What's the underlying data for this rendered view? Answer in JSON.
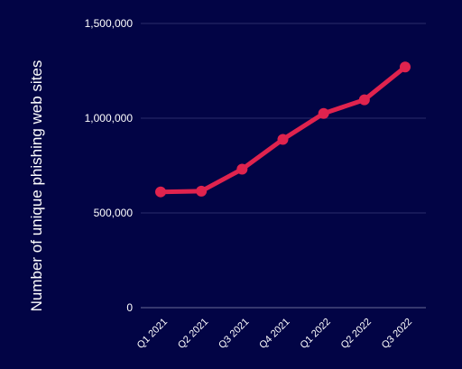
{
  "chart_data": {
    "type": "line",
    "title": "",
    "xlabel": "",
    "ylabel": "Number of unique phishing web sites",
    "categories": [
      "Q1 2021",
      "Q2 2021",
      "Q3 2021",
      "Q4 2021",
      "Q1 2022",
      "Q2 2022",
      "Q3 2022"
    ],
    "series": [
      {
        "values": [
          611000,
          615000,
          731000,
          888000,
          1025000,
          1097000,
          1270000
        ]
      }
    ],
    "ylim": [
      0,
      1500000
    ],
    "yticks": [
      0,
      500000,
      1000000,
      1500000
    ],
    "ytick_labels": [
      "0",
      "500,000",
      "1,000,000",
      "1,500,000"
    ],
    "grid": true,
    "legend": "none",
    "colors": {
      "background": "#020445",
      "line": "#E0234E",
      "grid": "#2A2C6B",
      "text": "#FFFFFF"
    }
  }
}
